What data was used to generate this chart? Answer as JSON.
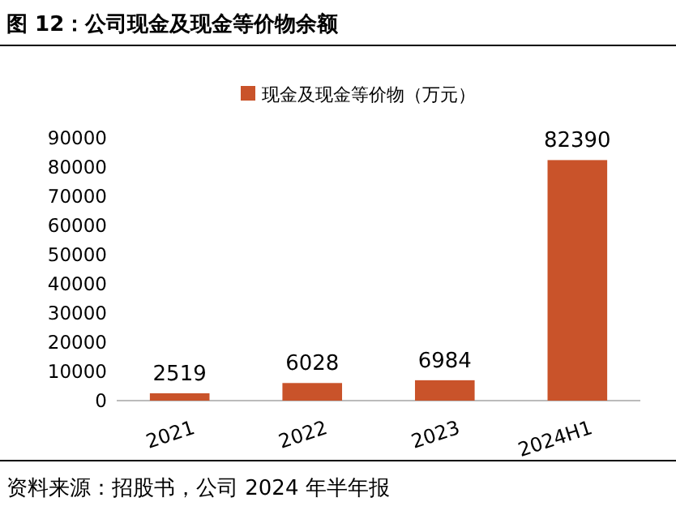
{
  "chart_data": {
    "type": "bar",
    "title": "图 12：公司现金及现金等价物余额",
    "categories": [
      "2021",
      "2022",
      "2023",
      "2024H1"
    ],
    "series": [
      {
        "name": "现金及现金等价物（万元）",
        "color": "#c9532a",
        "values": [
          2519,
          6028,
          6984,
          82390
        ]
      }
    ],
    "ylim": [
      0,
      90000
    ],
    "yticks": [
      0,
      10000,
      20000,
      30000,
      40000,
      50000,
      60000,
      70000,
      80000,
      90000
    ],
    "data_labels": true,
    "legend": "top",
    "grid": false,
    "annotations": [
      "资料来源：招股书，公司 2024 年半年报"
    ]
  }
}
